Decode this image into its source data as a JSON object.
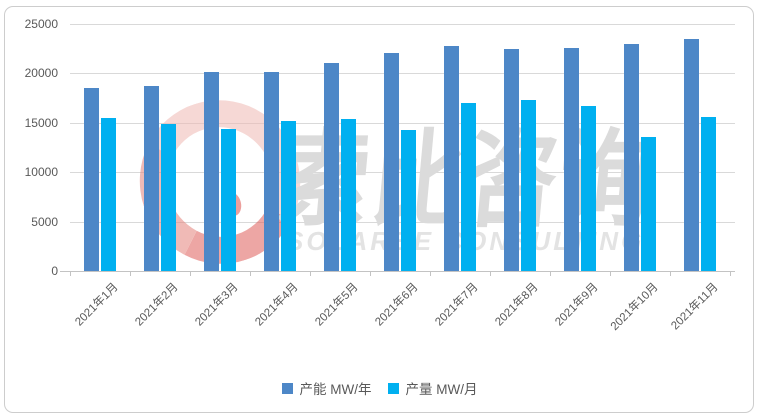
{
  "chart_data": {
    "type": "bar",
    "title": "",
    "xlabel": "",
    "ylabel": "",
    "categories": [
      "2021年1月",
      "2021年2月",
      "2021年3月",
      "2021年4月",
      "2021年5月",
      "2021年6月",
      "2021年7月",
      "2021年8月",
      "2021年9月",
      "2021年10月",
      "2021年11月"
    ],
    "series": [
      {
        "name": "产能 MW/年",
        "color": "#4D87C7",
        "values": [
          18500,
          18700,
          20100,
          20100,
          21100,
          22100,
          22800,
          22500,
          22600,
          23000,
          23500
        ]
      },
      {
        "name": "产量 MW/月",
        "color": "#00B0F0",
        "values": [
          15500,
          14900,
          14400,
          15200,
          15400,
          14300,
          17000,
          17300,
          16700,
          13600,
          15600
        ]
      }
    ],
    "ylim": [
      0,
      25000
    ],
    "ytick_interval": 5000,
    "ytick_labels": [
      "0",
      "5000",
      "10000",
      "15000",
      "20000",
      "25000"
    ],
    "grid": true,
    "legend_position": "bottom"
  },
  "watermark": {
    "cn_text": "索比咨询",
    "en_text": "SOLARBE CONSULTING"
  },
  "palette": {
    "capacity_blue": "#4D87C7",
    "production_cyan": "#00B0F0",
    "gridline": "#D9D9D9",
    "axis_line": "#C3C3C3",
    "label_text": "#595959",
    "frame_border": "#CDCDCD",
    "watermark_gray": "#DBDBDB",
    "watermark_pink": "#EFB9B4",
    "watermark_red": "#DF5F5A"
  }
}
